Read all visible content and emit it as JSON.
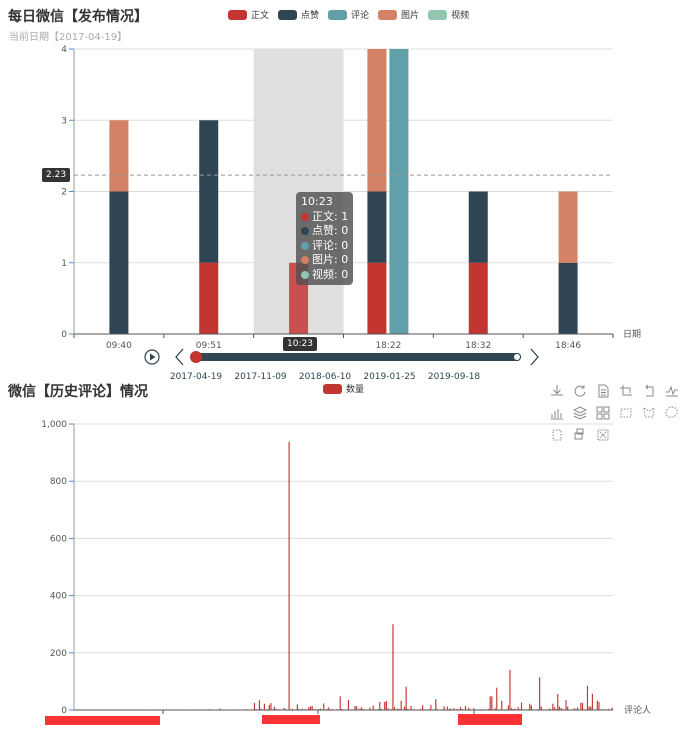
{
  "chart_data": [
    {
      "type": "bar",
      "stacked": true,
      "title": "每日微信【发布情况】",
      "subtitle": "当前日期【2017-04-19】",
      "xlabel": "日期",
      "ylabel": "",
      "ylim": [
        0,
        4
      ],
      "y_ticks": [
        "0",
        "1",
        "2",
        "3",
        "4"
      ],
      "grid": true,
      "legend_position": "top-center",
      "categories": [
        "09:40",
        "09:51",
        "10:23",
        "18:22",
        "18:32",
        "18:46"
      ],
      "series": [
        {
          "name": "正文",
          "color": "#c23531",
          "values": [
            0,
            1,
            1,
            1,
            1,
            0
          ]
        },
        {
          "name": "点赞",
          "color": "#2f4554",
          "values": [
            2,
            2,
            0,
            1,
            1,
            1
          ]
        },
        {
          "name": "评论",
          "color": "#61a0a8",
          "values": [
            0,
            0,
            0,
            4,
            0,
            0
          ]
        },
        {
          "name": "图片",
          "color": "#d48265",
          "values": [
            1,
            0,
            0,
            2,
            0,
            1
          ]
        },
        {
          "name": "视频",
          "color": "#91c7ae",
          "values": [
            0,
            0,
            0,
            0,
            0,
            0
          ]
        }
      ],
      "mark_line": {
        "label": "2.23",
        "value": 2.23
      },
      "highlighted_category": "10:23",
      "tooltip": {
        "title": "10:23",
        "rows": [
          {
            "name": "正文",
            "value": "1"
          },
          {
            "name": "点赞",
            "value": "0"
          },
          {
            "name": "评论",
            "value": "0"
          },
          {
            "name": "图片",
            "value": "0"
          },
          {
            "name": "视频",
            "value": "0"
          }
        ]
      },
      "axis_pointer_label": "10:23",
      "timeline": {
        "labels": [
          "2017-04-19",
          "2017-11-09",
          "2018-06-10",
          "2019-01-25",
          "2019-09-18"
        ],
        "current_index": 0,
        "play_label": "play"
      }
    },
    {
      "type": "bar",
      "title": "微信【历史评论】情况",
      "xlabel": "评论人",
      "ylabel": "",
      "ylim": [
        0,
        1000
      ],
      "y_ticks": [
        "0",
        "200",
        "400",
        "600",
        "800",
        "1,000"
      ],
      "grid": true,
      "legend_position": "top-center",
      "series": [
        {
          "name": "数量",
          "color": "#c23531",
          "values": [
            1,
            1,
            1,
            1,
            1,
            1,
            1,
            1,
            1,
            1,
            1,
            1,
            1,
            1,
            1,
            1,
            1,
            1,
            1,
            1,
            1,
            1,
            1,
            1,
            1,
            1,
            1,
            1,
            1,
            1,
            1,
            1,
            1,
            1,
            1,
            1,
            1,
            1,
            1,
            1,
            1,
            1,
            1,
            1,
            2,
            1,
            1,
            1,
            1,
            1,
            1,
            1,
            1,
            1,
            1,
            1,
            2,
            1,
            1,
            1,
            1,
            1,
            1,
            1,
            1,
            1,
            1,
            2,
            1,
            1,
            1,
            1,
            1,
            1,
            1,
            1,
            1,
            1,
            1,
            1,
            1,
            1,
            3,
            1,
            1,
            1,
            1,
            1,
            5,
            1,
            1,
            1,
            1,
            1,
            1,
            2,
            1,
            1,
            1,
            1,
            1,
            1,
            1,
            1,
            3,
            1,
            1,
            1,
            2,
            25,
            3,
            1,
            34,
            5,
            2,
            22,
            2,
            3,
            18,
            24,
            2,
            12,
            5,
            1,
            3,
            2,
            1,
            7,
            3,
            1,
            938,
            2,
            4,
            1,
            1,
            20,
            4,
            1,
            5,
            2,
            3,
            1,
            10,
            12,
            14,
            2,
            3,
            1,
            3,
            5,
            1,
            23,
            2,
            4,
            9,
            2,
            3,
            2,
            1,
            3,
            2,
            48,
            4,
            1,
            2,
            1,
            35,
            2,
            1,
            2,
            14,
            13,
            1,
            6,
            9,
            3,
            2,
            1,
            1,
            8,
            2,
            15,
            2,
            1,
            3,
            28,
            4,
            2,
            28,
            31,
            6,
            2,
            3,
            300,
            10,
            2,
            5,
            3,
            32,
            2,
            12,
            82,
            4,
            2,
            14,
            1,
            3,
            1,
            1,
            2,
            4,
            17,
            2,
            1,
            1,
            3,
            18,
            2,
            1,
            38,
            3,
            1,
            1,
            2,
            13,
            1,
            12,
            3,
            5,
            2,
            6,
            1,
            4,
            2,
            10,
            3,
            2,
            14,
            1,
            8,
            2,
            1,
            6,
            2,
            2,
            1,
            1,
            3,
            2,
            2,
            1,
            4,
            48,
            48,
            2,
            6,
            78,
            1,
            2,
            32,
            1,
            2,
            2,
            16,
            140,
            6,
            3,
            5,
            1,
            10,
            3,
            26,
            2,
            2,
            1,
            3,
            22,
            16,
            2,
            1,
            1,
            3,
            114,
            12,
            2,
            1,
            2,
            2,
            5,
            2,
            22,
            10,
            3,
            56,
            12,
            7,
            3,
            2,
            35,
            12,
            1,
            1,
            2,
            6,
            3,
            9,
            1,
            25,
            25,
            3,
            1,
            85,
            12,
            12,
            57,
            2,
            1,
            33,
            28,
            2,
            3,
            1,
            2,
            2,
            4,
            1,
            8
          ]
        }
      ]
    }
  ],
  "legend_top": [
    {
      "name": "正文",
      "color": "#c23531"
    },
    {
      "name": "点赞",
      "color": "#2f4554"
    },
    {
      "name": "评论",
      "color": "#61a0a8"
    },
    {
      "name": "图片",
      "color": "#d48265"
    },
    {
      "name": "视频",
      "color": "#91c7ae"
    }
  ],
  "legend_bottom": [
    {
      "name": "数量",
      "color": "#c23531"
    }
  ],
  "toolbox": [
    {
      "icon": "download-icon"
    },
    {
      "icon": "refresh-icon"
    },
    {
      "icon": "data-view-icon"
    },
    {
      "icon": "zoom-in-icon"
    },
    {
      "icon": "zoom-back-icon"
    },
    {
      "icon": "line-chart-icon"
    },
    {
      "icon": "bar-chart-icon"
    },
    {
      "icon": "stack-icon"
    },
    {
      "icon": "tiled-icon"
    },
    {
      "icon": "rect-select-icon"
    },
    {
      "icon": "polygon-select-icon"
    },
    {
      "icon": "lasso-select-icon"
    },
    {
      "icon": "keep-select-icon"
    },
    {
      "icon": "clear-select-icon"
    },
    {
      "icon": "clear-brush-icon"
    }
  ]
}
